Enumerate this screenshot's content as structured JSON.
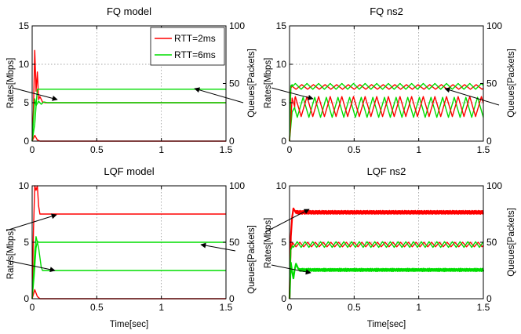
{
  "chart_data": [
    {
      "type": "line",
      "title": "FQ model",
      "xlabel": "",
      "ylabel": "Rates[Mbps]",
      "y2label": "Queues[Packets]",
      "xlim": [
        0,
        1.5
      ],
      "ylim": [
        0,
        15
      ],
      "y2lim": [
        0,
        100
      ],
      "xticks": [
        0,
        0.5,
        1,
        1.5
      ],
      "xtick_labels": [
        "0",
        "0.5",
        "1",
        "1.5"
      ],
      "yticks": [
        0,
        5,
        10,
        15
      ],
      "ytick_labels": [
        "0",
        "5",
        "10",
        "15"
      ],
      "y2ticks": [
        0,
        50,
        100
      ],
      "y2tick_labels": [
        "0",
        "50",
        "100"
      ],
      "grid": true,
      "legend": {
        "position": "top-right",
        "entries": [
          "RTT=2ms",
          "RTT=6ms"
        ]
      },
      "series": [
        {
          "name": "RTT=2ms rate",
          "color": "#ff0000",
          "axis": "left",
          "pattern": "spike",
          "x": [
            0,
            0.01,
            0.02,
            0.03,
            0.04,
            0.05,
            0.06,
            0.08,
            0.1,
            1.5
          ],
          "y": [
            0,
            4,
            11.8,
            6.5,
            9,
            5.4,
            5.8,
            5.1,
            5,
            5
          ]
        },
        {
          "name": "RTT=6ms rate",
          "color": "#00dd00",
          "axis": "left",
          "pattern": "spike",
          "x": [
            0,
            0.01,
            0.02,
            0.03,
            0.05,
            0.07,
            0.09,
            0.12,
            1.5
          ],
          "y": [
            0,
            2.8,
            5.5,
            4.6,
            5.2,
            4.8,
            5.1,
            5,
            5
          ]
        },
        {
          "name": "RTT=2ms queue",
          "color": "#ff0000",
          "axis": "right",
          "pattern": "spike",
          "x": [
            0,
            0.02,
            0.04,
            0.06,
            1.5
          ],
          "y": [
            0,
            5,
            1,
            0,
            0
          ]
        },
        {
          "name": "RTT=6ms queue",
          "color": "#00dd00",
          "axis": "right",
          "pattern": "spike",
          "x": [
            0,
            0.02,
            0.03,
            0.04,
            0.05,
            1.5
          ],
          "y": [
            0,
            15,
            30,
            45,
            45,
            45
          ]
        }
      ],
      "annotations": [
        "arrow to rate curves",
        "arrow to queue curve"
      ]
    },
    {
      "type": "line",
      "title": "FQ ns2",
      "xlabel": "",
      "ylabel": "Rates[Mbps]",
      "y2label": "Queues[Packets]",
      "xlim": [
        0,
        1.5
      ],
      "ylim": [
        0,
        15
      ],
      "y2lim": [
        0,
        100
      ],
      "xticks": [
        0,
        0.5,
        1,
        1.5
      ],
      "xtick_labels": [
        "0",
        "0.5",
        "1",
        "1.5"
      ],
      "yticks": [
        0,
        5,
        10,
        15
      ],
      "ytick_labels": [
        "0",
        "5",
        "10",
        "15"
      ],
      "y2ticks": [
        0,
        50,
        100
      ],
      "y2tick_labels": [
        "0",
        "50",
        "100"
      ],
      "grid": true,
      "series": [
        {
          "name": "RTT=6ms rate",
          "color": "#00dd00",
          "axis": "left",
          "pattern": "saw",
          "base": 4.4,
          "amp": 1.3,
          "period": 0.09,
          "phase": 0.03,
          "x": [
            0,
            0.02,
            0.04,
            1.5
          ],
          "y": [
            0,
            3.8,
            4.4,
            5
          ]
        },
        {
          "name": "RTT=2ms rate",
          "color": "#ff0000",
          "axis": "left",
          "pattern": "saw",
          "base": 4.5,
          "amp": 1.3,
          "period": 0.09,
          "phase": 0,
          "x": [
            0,
            0.02,
            0.04,
            1.5
          ],
          "y": [
            0,
            5.6,
            4.5,
            5
          ]
        },
        {
          "name": "RTT=2ms queue",
          "color": "#ff0000",
          "axis": "right",
          "pattern": "saw",
          "base": 47,
          "amp": 2,
          "period": 0.09,
          "phase": 0.04,
          "x": [
            0,
            0.01,
            0.02,
            1.5
          ],
          "y": [
            0,
            46,
            48,
            48
          ]
        },
        {
          "name": "RTT=6ms queue",
          "color": "#00dd00",
          "axis": "right",
          "pattern": "saw",
          "base": 47.5,
          "amp": 2.5,
          "period": 0.09,
          "phase": 0,
          "x": [
            0,
            0.01,
            0.02,
            1.5
          ],
          "y": [
            0,
            48,
            49,
            49
          ]
        }
      ],
      "annotations": [
        "arrow to rate curves",
        "arrow to queue curves"
      ]
    },
    {
      "type": "line",
      "title": "LQF model",
      "xlabel": "Time[sec]",
      "ylabel": "Rates[Mbps]",
      "y2label": "Queues[Packets]",
      "xlim": [
        0,
        1.5
      ],
      "ylim": [
        0,
        10
      ],
      "y2lim": [
        0,
        100
      ],
      "xticks": [
        0,
        0.5,
        1,
        1.5
      ],
      "xtick_labels": [
        "0",
        "0.5",
        "1",
        "1.5"
      ],
      "yticks": [
        0,
        5,
        10
      ],
      "ytick_labels": [
        "0",
        "5",
        "10"
      ],
      "y2ticks": [
        0,
        50,
        100
      ],
      "y2tick_labels": [
        "0",
        "50",
        "100"
      ],
      "grid": true,
      "series": [
        {
          "name": "RTT=2ms rate",
          "color": "#ff0000",
          "axis": "left",
          "pattern": "spike",
          "x": [
            0,
            0.01,
            0.02,
            0.03,
            0.04,
            0.05,
            0.06,
            0.08,
            0.1,
            1.5
          ],
          "y": [
            0,
            6,
            10,
            9.6,
            10,
            8.2,
            7.5,
            7.5,
            7.5,
            7.5
          ]
        },
        {
          "name": "RTT=6ms rate",
          "color": "#00dd00",
          "axis": "left",
          "pattern": "spike",
          "x": [
            0,
            0.01,
            0.02,
            0.03,
            0.05,
            0.07,
            0.08,
            0.1,
            1.5
          ],
          "y": [
            0,
            2,
            4.2,
            5.5,
            4.5,
            2.8,
            2.5,
            2.5,
            2.5
          ]
        },
        {
          "name": "RTT=2ms queue",
          "color": "#ff0000",
          "axis": "right",
          "pattern": "spike",
          "x": [
            0,
            0.02,
            0.04,
            0.06,
            1.5
          ],
          "y": [
            0,
            8,
            2,
            0,
            0
          ]
        },
        {
          "name": "RTT=6ms queue",
          "color": "#00dd00",
          "axis": "right",
          "pattern": "spike",
          "x": [
            0,
            0.015,
            0.03,
            0.04,
            0.05,
            1.5
          ],
          "y": [
            0,
            20,
            45,
            51,
            50,
            50
          ]
        }
      ],
      "annotations": [
        "arrow to RTT=2ms rate",
        "arrow to RTT=6ms rate",
        "arrow to queue curve"
      ]
    },
    {
      "type": "line",
      "title": "LQF ns2",
      "xlabel": "Time[sec]",
      "ylabel": "Rates[Mbps]",
      "y2label": "Queues[Packets]",
      "xlim": [
        0,
        1.5
      ],
      "ylim": [
        0,
        10
      ],
      "y2lim": [
        0,
        100
      ],
      "xticks": [
        0,
        0.5,
        1,
        1.5
      ],
      "xtick_labels": [
        "0",
        "0.5",
        "1",
        "1.5"
      ],
      "yticks": [
        0,
        5,
        10
      ],
      "ytick_labels": [
        "0",
        "5",
        "10"
      ],
      "y2ticks": [
        0,
        50,
        100
      ],
      "y2tick_labels": [
        "0",
        "50",
        "100"
      ],
      "grid": true,
      "series": [
        {
          "name": "RTT=2ms rate",
          "color": "#ff0000",
          "axis": "left",
          "pattern": "noise",
          "base": 7.65,
          "amp": 0.15,
          "period": 0.01,
          "phase": 0,
          "x": [
            0,
            0.01,
            0.02,
            0.03,
            0.05,
            1.5
          ],
          "y": [
            0,
            5.5,
            7.2,
            8,
            7.6,
            7.6
          ]
        },
        {
          "name": "RTT=6ms rate",
          "color": "#00dd00",
          "axis": "left",
          "pattern": "noise",
          "base": 2.55,
          "amp": 0.12,
          "period": 0.012,
          "phase": 0,
          "x": [
            0,
            0.01,
            0.02,
            0.03,
            0.04,
            0.05,
            0.07,
            1.5
          ],
          "y": [
            0,
            3.2,
            2.4,
            1.8,
            2.6,
            3.1,
            2.6,
            2.6
          ]
        },
        {
          "name": "RTT=2ms queue",
          "color": "#ff0000",
          "axis": "right",
          "pattern": "saw",
          "base": 48,
          "amp": 2,
          "period": 0.06,
          "phase": 0.01,
          "x": [
            0,
            0.01,
            0.02,
            1.5
          ],
          "y": [
            0,
            44,
            47,
            48
          ]
        },
        {
          "name": "RTT=6ms queue",
          "color": "#00dd00",
          "axis": "right",
          "pattern": "saw",
          "base": 48,
          "amp": 2.5,
          "period": 0.06,
          "phase": 0.03,
          "x": [
            0,
            0.01,
            0.02,
            1.5
          ],
          "y": [
            0,
            43,
            46,
            48
          ]
        }
      ],
      "annotations": [
        "arrow to rate curves",
        "arrow to queue curves"
      ]
    }
  ]
}
